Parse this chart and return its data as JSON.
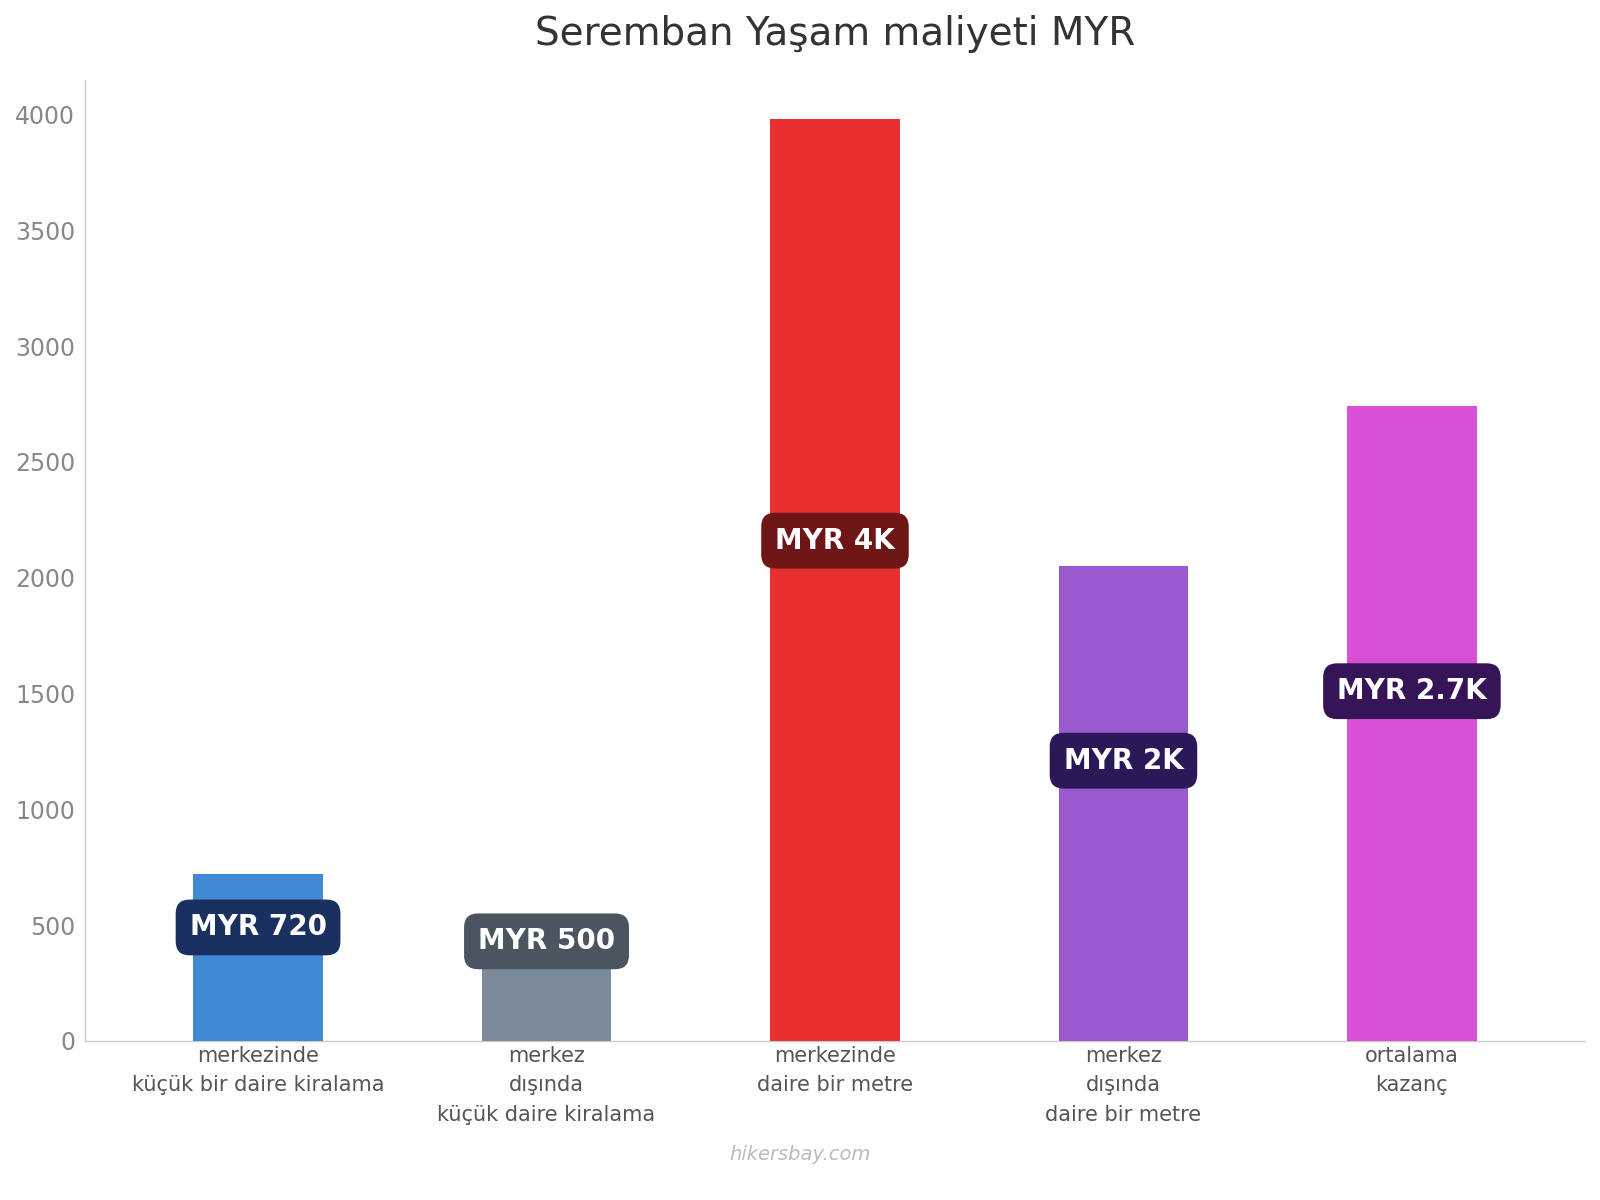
{
  "title": "Seremban Yaşam maliyeti MYR",
  "categories": [
    "merkezinde\nküçük bir daire kiralama",
    "merkez\ndışında\nküçük daire kiralama",
    "merkezinde\ndaire bir metre",
    "merkez\ndışında\ndaire bir metre",
    "ortalama\nkazanç"
  ],
  "values": [
    720,
    500,
    3980,
    2050,
    2740
  ],
  "bar_colors": [
    "#4189d4",
    "#7a8a9a",
    "#e83030",
    "#9b59d0",
    "#d94fd5"
  ],
  "label_texts": [
    "MYR 720",
    "MYR 500",
    "MYR 4K",
    "MYR 2K",
    "MYR 2.7K"
  ],
  "label_bg_colors": [
    "#1a3060",
    "#4a5560",
    "#6e1515",
    "#2a1858",
    "#351558"
  ],
  "label_y_abs": [
    490,
    430,
    2160,
    1210,
    1510
  ],
  "ylim": [
    0,
    4150
  ],
  "yticks": [
    0,
    500,
    1000,
    1500,
    2000,
    2500,
    3000,
    3500,
    4000
  ],
  "title_fontsize": 28,
  "tick_fontsize": 17,
  "label_fontsize": 20,
  "xlabel_fontsize": 15,
  "watermark": "hikersbay.com",
  "bg_color": "#ffffff",
  "bar_width": 0.45,
  "left_spine_color": "#cccccc",
  "bottom_spine_color": "#cccccc"
}
